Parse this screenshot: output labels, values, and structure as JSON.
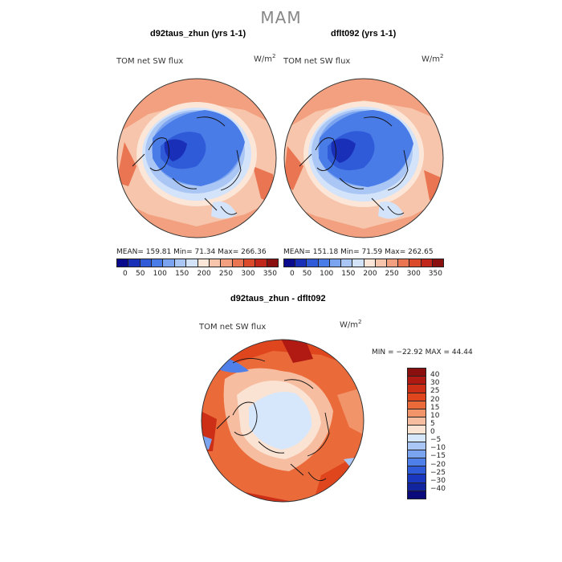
{
  "figure": {
    "season": "MAM",
    "panels": [
      {
        "title": "d92taus_zhun (yrs 1-1)",
        "variable": "TOM net SW flux",
        "units_base": "W/m",
        "units_exp": "2",
        "stats": "MEAN= 159.81   Min=  71.34   Max= 266.36",
        "colorbar_ticks": [
          "0",
          "50",
          "100",
          "150",
          "200",
          "250",
          "300",
          "350"
        ]
      },
      {
        "title": "dflt092 (yrs 1-1)",
        "variable": "TOM net SW flux",
        "units_base": "W/m",
        "units_exp": "2",
        "stats": "MEAN= 151.18   Min=  71.59   Max= 262.65",
        "colorbar_ticks": [
          "0",
          "50",
          "100",
          "150",
          "200",
          "250",
          "300",
          "350"
        ]
      }
    ],
    "difference": {
      "title": "d92taus_zhun - dflt092",
      "variable": "TOM net SW flux",
      "units_base": "W/m",
      "units_exp": "2",
      "stats": "MIN = −22.92  MAX =  44.44",
      "colorbar_labels": [
        "40",
        "30",
        "25",
        "20",
        "15",
        "10",
        "5",
        "0",
        "−5",
        "−10",
        "−15",
        "−20",
        "−25",
        "−30",
        "−40"
      ]
    }
  },
  "colors": {
    "abs_scale": [
      "#0a0a8c",
      "#1a2fb8",
      "#2f5ad8",
      "#4a7ce8",
      "#7aa3f0",
      "#a9c6f5",
      "#d3e3fa",
      "#fbe6d8",
      "#f7c5ab",
      "#f2a07f",
      "#ea7552",
      "#dc4a2c",
      "#c0261a",
      "#8a0f0f"
    ],
    "diff_scale": [
      "#8a0f0f",
      "#b01a12",
      "#cc2e16",
      "#e0461e",
      "#ea6a3a",
      "#f2946a",
      "#f7bda0",
      "#fbe3d3",
      "#d6e7fb",
      "#a9c6f5",
      "#7aa3f0",
      "#4f80ea",
      "#2f5ad8",
      "#1a38bf",
      "#12249e",
      "#0a0a7a"
    ]
  }
}
